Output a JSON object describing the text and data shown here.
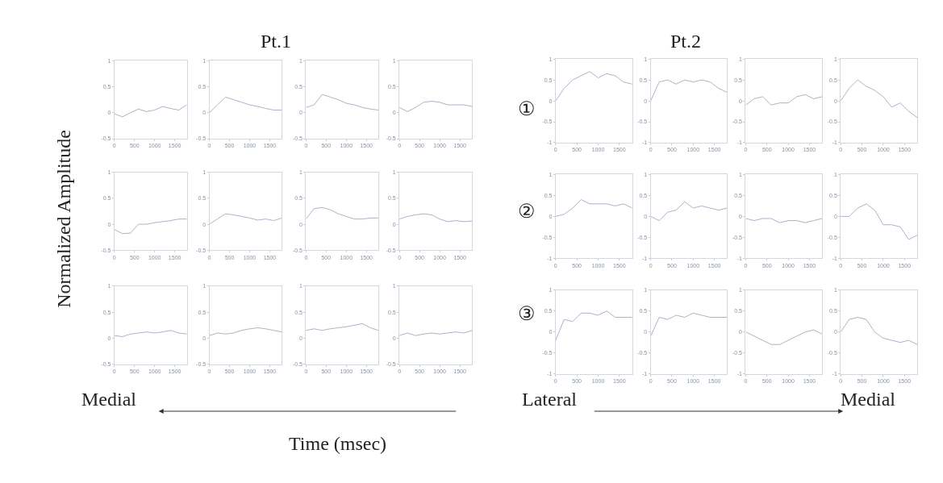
{
  "chart_data": [
    {
      "type": "line",
      "x": [
        0,
        200,
        400,
        600,
        800,
        1000,
        1200,
        1400,
        1600,
        1800
      ],
      "values": [
        -0.02,
        -0.08,
        0.0,
        0.07,
        0.02,
        0.05,
        0.12,
        0.08,
        0.05,
        0.15
      ],
      "color": "#a9b4c8",
      "xlim": [
        0,
        1800
      ],
      "ylim": [
        -0.5,
        1
      ],
      "xticks": [
        0,
        500,
        1000,
        1500
      ],
      "yticks": [
        -0.5,
        0,
        0.5,
        1
      ]
    },
    {
      "type": "line",
      "x": [
        0,
        200,
        400,
        600,
        800,
        1000,
        1200,
        1400,
        1600,
        1800
      ],
      "values": [
        0.0,
        0.15,
        0.3,
        0.25,
        0.2,
        0.15,
        0.12,
        0.08,
        0.05,
        0.05
      ],
      "color": "#a9b4c8",
      "xlim": [
        0,
        1800
      ],
      "ylim": [
        -0.5,
        1
      ],
      "xticks": [
        0,
        500,
        1000,
        1500
      ],
      "yticks": [
        -0.5,
        0,
        0.5,
        1
      ]
    },
    {
      "type": "line",
      "x": [
        0,
        200,
        400,
        600,
        800,
        1000,
        1200,
        1400,
        1600,
        1800
      ],
      "values": [
        0.1,
        0.15,
        0.35,
        0.3,
        0.25,
        0.18,
        0.15,
        0.1,
        0.07,
        0.05
      ],
      "color": "#a9b4c8",
      "xlim": [
        0,
        1800
      ],
      "ylim": [
        -0.5,
        1
      ],
      "xticks": [
        0,
        500,
        1000,
        1500
      ],
      "yticks": [
        -0.5,
        0,
        0.5,
        1
      ]
    },
    {
      "type": "line",
      "x": [
        0,
        200,
        400,
        600,
        800,
        1000,
        1200,
        1400,
        1600,
        1800
      ],
      "values": [
        0.1,
        0.02,
        0.1,
        0.2,
        0.22,
        0.2,
        0.15,
        0.15,
        0.15,
        0.12
      ],
      "color": "#a9b4c8",
      "xlim": [
        0,
        1800
      ],
      "ylim": [
        -0.5,
        1
      ],
      "xticks": [
        0,
        500,
        1000,
        1500
      ],
      "yticks": [
        -0.5,
        0,
        0.5,
        1
      ]
    },
    {
      "type": "line",
      "x": [
        0,
        200,
        400,
        600,
        800,
        1000,
        1200,
        1400,
        1600,
        1800
      ],
      "values": [
        -0.1,
        -0.18,
        -0.17,
        0.0,
        0.0,
        0.03,
        0.05,
        0.07,
        0.1,
        0.1
      ],
      "color": "#a9b4c8",
      "xlim": [
        0,
        1800
      ],
      "ylim": [
        -0.5,
        1
      ],
      "xticks": [
        0,
        500,
        1000,
        1500
      ],
      "yticks": [
        -0.5,
        0,
        0.5,
        1
      ]
    },
    {
      "type": "line",
      "x": [
        0,
        200,
        400,
        600,
        800,
        1000,
        1200,
        1400,
        1600,
        1800
      ],
      "values": [
        0.0,
        0.1,
        0.2,
        0.18,
        0.15,
        0.12,
        0.08,
        0.1,
        0.07,
        0.12
      ],
      "color": "#a9b4c8",
      "xlim": [
        0,
        1800
      ],
      "ylim": [
        -0.5,
        1
      ],
      "xticks": [
        0,
        500,
        1000,
        1500
      ],
      "yticks": [
        -0.5,
        0,
        0.5,
        1
      ]
    },
    {
      "type": "line",
      "x": [
        0,
        200,
        400,
        600,
        800,
        1000,
        1200,
        1400,
        1600,
        1800
      ],
      "values": [
        0.1,
        0.3,
        0.32,
        0.28,
        0.2,
        0.15,
        0.1,
        0.1,
        0.12,
        0.12
      ],
      "color": "#a9b4c8",
      "xlim": [
        0,
        1800
      ],
      "ylim": [
        -0.5,
        1
      ],
      "xticks": [
        0,
        500,
        1000,
        1500
      ],
      "yticks": [
        -0.5,
        0,
        0.5,
        1
      ]
    },
    {
      "type": "line",
      "x": [
        0,
        200,
        400,
        600,
        800,
        1000,
        1200,
        1400,
        1600,
        1800
      ],
      "values": [
        0.1,
        0.15,
        0.18,
        0.2,
        0.18,
        0.1,
        0.05,
        0.07,
        0.05,
        0.06
      ],
      "color": "#a9b4c8",
      "xlim": [
        0,
        1800
      ],
      "ylim": [
        -0.5,
        1
      ],
      "xticks": [
        0,
        500,
        1000,
        1500
      ],
      "yticks": [
        -0.5,
        0,
        0.5,
        1
      ]
    },
    {
      "type": "line",
      "x": [
        0,
        200,
        400,
        600,
        800,
        1000,
        1200,
        1400,
        1600,
        1800
      ],
      "values": [
        0.05,
        0.03,
        0.08,
        0.1,
        0.12,
        0.1,
        0.12,
        0.15,
        0.1,
        0.08
      ],
      "color": "#a9b4c8",
      "xlim": [
        0,
        1800
      ],
      "ylim": [
        -0.5,
        1
      ],
      "xticks": [
        0,
        500,
        1000,
        1500
      ],
      "yticks": [
        -0.5,
        0,
        0.5,
        1
      ]
    },
    {
      "type": "line",
      "x": [
        0,
        200,
        400,
        600,
        800,
        1000,
        1200,
        1400,
        1600,
        1800
      ],
      "values": [
        0.05,
        0.1,
        0.08,
        0.1,
        0.15,
        0.18,
        0.2,
        0.18,
        0.15,
        0.12
      ],
      "color": "#a9b4c8",
      "xlim": [
        0,
        1800
      ],
      "ylim": [
        -0.5,
        1
      ],
      "xticks": [
        0,
        500,
        1000,
        1500
      ],
      "yticks": [
        -0.5,
        0,
        0.5,
        1
      ]
    },
    {
      "type": "line",
      "x": [
        0,
        200,
        400,
        600,
        800,
        1000,
        1200,
        1400,
        1600,
        1800
      ],
      "values": [
        0.15,
        0.18,
        0.15,
        0.18,
        0.2,
        0.22,
        0.25,
        0.28,
        0.2,
        0.15
      ],
      "color": "#a9b4c8",
      "xlim": [
        0,
        1800
      ],
      "ylim": [
        -0.5,
        1
      ],
      "xticks": [
        0,
        500,
        1000,
        1500
      ],
      "yticks": [
        -0.5,
        0,
        0.5,
        1
      ]
    },
    {
      "type": "line",
      "x": [
        0,
        200,
        400,
        600,
        800,
        1000,
        1200,
        1400,
        1600,
        1800
      ],
      "values": [
        0.05,
        0.1,
        0.05,
        0.08,
        0.1,
        0.08,
        0.1,
        0.12,
        0.1,
        0.15
      ],
      "color": "#a9b4c8",
      "xlim": [
        0,
        1800
      ],
      "ylim": [
        -0.5,
        1
      ],
      "xticks": [
        0,
        500,
        1000,
        1500
      ],
      "yticks": [
        -0.5,
        0,
        0.5,
        1
      ]
    },
    {
      "type": "line",
      "x": [
        0,
        200,
        400,
        600,
        800,
        1000,
        1200,
        1400,
        1600,
        1800
      ],
      "values": [
        0.0,
        0.3,
        0.5,
        0.6,
        0.7,
        0.55,
        0.65,
        0.6,
        0.45,
        0.4
      ],
      "color": "#a9b4c8",
      "xlim": [
        0,
        1800
      ],
      "ylim": [
        -1,
        1
      ],
      "xticks": [
        0,
        500,
        1000,
        1500
      ],
      "yticks": [
        -1,
        -0.5,
        0,
        0.5,
        1
      ]
    },
    {
      "type": "line",
      "x": [
        0,
        200,
        400,
        600,
        800,
        1000,
        1200,
        1400,
        1600,
        1800
      ],
      "values": [
        0.0,
        0.45,
        0.5,
        0.4,
        0.5,
        0.45,
        0.5,
        0.45,
        0.3,
        0.2
      ],
      "color": "#a9b4c8",
      "xlim": [
        0,
        1800
      ],
      "ylim": [
        -1,
        1
      ],
      "xticks": [
        0,
        500,
        1000,
        1500
      ],
      "yticks": [
        -1,
        -0.5,
        0,
        0.5,
        1
      ]
    },
    {
      "type": "line",
      "x": [
        0,
        200,
        400,
        600,
        800,
        1000,
        1200,
        1400,
        1600,
        1800
      ],
      "values": [
        -0.1,
        0.05,
        0.1,
        -0.1,
        -0.05,
        -0.05,
        0.1,
        0.15,
        0.05,
        0.1
      ],
      "color": "#a9b4c8",
      "xlim": [
        0,
        1800
      ],
      "ylim": [
        -1,
        1
      ],
      "xticks": [
        0,
        500,
        1000,
        1500
      ],
      "yticks": [
        -1,
        -0.5,
        0,
        0.5,
        1
      ]
    },
    {
      "type": "line",
      "x": [
        0,
        200,
        400,
        600,
        800,
        1000,
        1200,
        1400,
        1600,
        1800
      ],
      "values": [
        0.0,
        0.3,
        0.5,
        0.35,
        0.25,
        0.1,
        -0.15,
        -0.05,
        -0.25,
        -0.4
      ],
      "color": "#a9b4c8",
      "xlim": [
        0,
        1800
      ],
      "ylim": [
        -1,
        1
      ],
      "xticks": [
        0,
        500,
        1000,
        1500
      ],
      "yticks": [
        -1,
        -0.5,
        0,
        0.5,
        1
      ]
    },
    {
      "type": "line",
      "x": [
        0,
        200,
        400,
        600,
        800,
        1000,
        1200,
        1400,
        1600,
        1800
      ],
      "values": [
        0.0,
        0.05,
        0.2,
        0.4,
        0.3,
        0.3,
        0.3,
        0.25,
        0.3,
        0.2
      ],
      "color": "#a9b4c8",
      "xlim": [
        0,
        1800
      ],
      "ylim": [
        -1,
        1
      ],
      "xticks": [
        0,
        500,
        1000,
        1500
      ],
      "yticks": [
        -1,
        -0.5,
        0,
        0.5,
        1
      ]
    },
    {
      "type": "line",
      "x": [
        0,
        200,
        400,
        600,
        800,
        1000,
        1200,
        1400,
        1600,
        1800
      ],
      "values": [
        0.0,
        -0.1,
        0.1,
        0.15,
        0.35,
        0.2,
        0.25,
        0.2,
        0.15,
        0.2
      ],
      "color": "#a9b4c8",
      "xlim": [
        0,
        1800
      ],
      "ylim": [
        -1,
        1
      ],
      "xticks": [
        0,
        500,
        1000,
        1500
      ],
      "yticks": [
        -1,
        -0.5,
        0,
        0.5,
        1
      ]
    },
    {
      "type": "line",
      "x": [
        0,
        200,
        400,
        600,
        800,
        1000,
        1200,
        1400,
        1600,
        1800
      ],
      "values": [
        -0.05,
        -0.1,
        -0.05,
        -0.05,
        -0.15,
        -0.1,
        -0.1,
        -0.15,
        -0.1,
        -0.05
      ],
      "color": "#a9b4c8",
      "xlim": [
        0,
        1800
      ],
      "ylim": [
        -1,
        1
      ],
      "xticks": [
        0,
        500,
        1000,
        1500
      ],
      "yticks": [
        -1,
        -0.5,
        0,
        0.5,
        1
      ]
    },
    {
      "type": "line",
      "x": [
        0,
        200,
        400,
        600,
        800,
        1000,
        1200,
        1400,
        1600,
        1800
      ],
      "values": [
        0.0,
        0.0,
        0.2,
        0.3,
        0.15,
        -0.2,
        -0.2,
        -0.25,
        -0.55,
        -0.45
      ],
      "color": "#a9b4c8",
      "xlim": [
        0,
        1800
      ],
      "ylim": [
        -1,
        1
      ],
      "xticks": [
        0,
        500,
        1000,
        1500
      ],
      "yticks": [
        -1,
        -0.5,
        0,
        0.5,
        1
      ]
    },
    {
      "type": "line",
      "x": [
        0,
        200,
        400,
        600,
        800,
        1000,
        1200,
        1400,
        1600,
        1800
      ],
      "values": [
        -0.2,
        0.3,
        0.25,
        0.45,
        0.45,
        0.4,
        0.5,
        0.35,
        0.35,
        0.35
      ],
      "color": "#a9b4c8",
      "xlim": [
        0,
        1800
      ],
      "ylim": [
        -1,
        1
      ],
      "xticks": [
        0,
        500,
        1000,
        1500
      ],
      "yticks": [
        -1,
        -0.5,
        0,
        0.5,
        1
      ]
    },
    {
      "type": "line",
      "x": [
        0,
        200,
        400,
        600,
        800,
        1000,
        1200,
        1400,
        1600,
        1800
      ],
      "values": [
        -0.1,
        0.35,
        0.3,
        0.4,
        0.35,
        0.45,
        0.4,
        0.35,
        0.35,
        0.35
      ],
      "color": "#a9b4c8",
      "xlim": [
        0,
        1800
      ],
      "ylim": [
        -1,
        1
      ],
      "xticks": [
        0,
        500,
        1000,
        1500
      ],
      "yticks": [
        -1,
        -0.5,
        0,
        0.5,
        1
      ]
    },
    {
      "type": "line",
      "x": [
        0,
        200,
        400,
        600,
        800,
        1000,
        1200,
        1400,
        1600,
        1800
      ],
      "values": [
        0.0,
        -0.1,
        -0.2,
        -0.3,
        -0.3,
        -0.2,
        -0.1,
        0.0,
        0.05,
        -0.05
      ],
      "color": "#a9b4c8",
      "xlim": [
        0,
        1800
      ],
      "ylim": [
        -1,
        1
      ],
      "xticks": [
        0,
        500,
        1000,
        1500
      ],
      "yticks": [
        -1,
        -0.5,
        0,
        0.5,
        1
      ]
    },
    {
      "type": "line",
      "x": [
        0,
        200,
        400,
        600,
        800,
        1000,
        1200,
        1400,
        1600,
        1800
      ],
      "values": [
        0.0,
        0.3,
        0.35,
        0.3,
        0.0,
        -0.15,
        -0.2,
        -0.25,
        -0.2,
        -0.3
      ],
      "color": "#a9b4c8",
      "xlim": [
        0,
        1800
      ],
      "ylim": [
        -1,
        1
      ],
      "xticks": [
        0,
        500,
        1000,
        1500
      ],
      "yticks": [
        -1,
        -0.5,
        0,
        0.5,
        1
      ]
    },
    {
      "type": "other",
      "annotations": [
        "Pt.1",
        "Pt.2",
        "Normalized Amplitude",
        "Time (msec)",
        "Medial",
        "Lateral",
        "Medial",
        "①",
        "②",
        "③"
      ]
    }
  ]
}
